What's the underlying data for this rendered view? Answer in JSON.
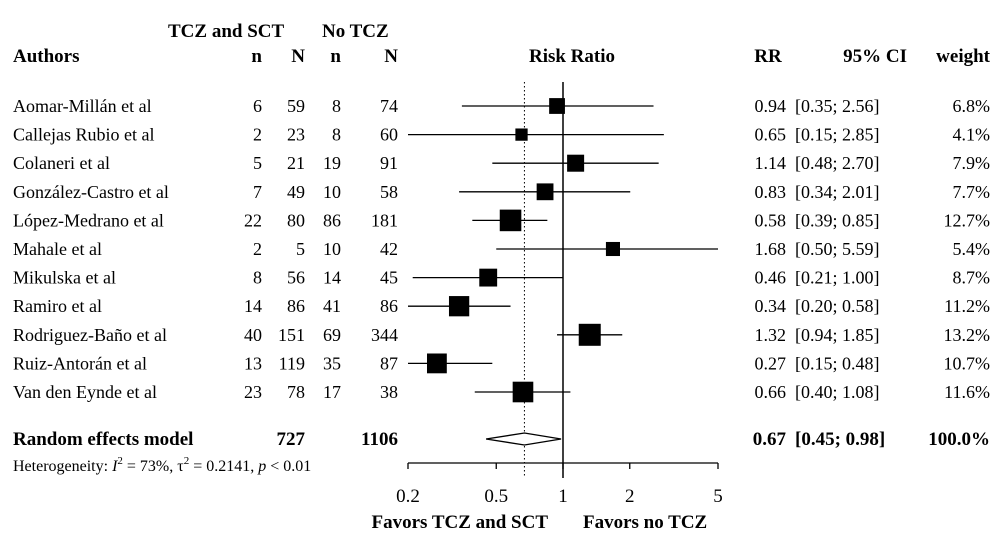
{
  "header": {
    "group1": "TCZ and SCT",
    "group2": "No TCZ",
    "authors": "Authors",
    "n1": "n",
    "N1": "N",
    "n2": "n",
    "N2": "N",
    "risk_ratio": "Risk Ratio",
    "rr": "RR",
    "ci": "95% CI",
    "weight": "weight"
  },
  "chart_data": {
    "type": "forest",
    "title": "Risk Ratio",
    "xscale": "log",
    "xlim": [
      0.2,
      5
    ],
    "xticks": [
      0.2,
      0.5,
      1,
      2,
      5
    ],
    "xtick_labels": [
      "0.2",
      "0.5",
      "1",
      "2",
      "5"
    ],
    "null_line": 1,
    "pooled_line": 0.67,
    "xlabel_left": "Favors TCZ and SCT",
    "xlabel_right": "Favors no TCZ",
    "studies": [
      {
        "author": "Aomar-Millán et al",
        "n1": "6",
        "N1": "59",
        "n2": "8",
        "N2": "74",
        "rr": 0.94,
        "lo": 0.35,
        "hi": 2.56,
        "rr_text": "0.94",
        "ci_text": "[0.35; 2.56]",
        "weight": 6.8,
        "weight_text": "6.8%"
      },
      {
        "author": "Callejas Rubio et al",
        "n1": "2",
        "N1": "23",
        "n2": "8",
        "N2": "60",
        "rr": 0.65,
        "lo": 0.15,
        "hi": 2.85,
        "rr_text": "0.65",
        "ci_text": "[0.15; 2.85]",
        "weight": 4.1,
        "weight_text": "4.1%"
      },
      {
        "author": "Colaneri et al",
        "n1": "5",
        "N1": "21",
        "n2": "19",
        "N2": "91",
        "rr": 1.14,
        "lo": 0.48,
        "hi": 2.7,
        "rr_text": "1.14",
        "ci_text": "[0.48; 2.70]",
        "weight": 7.9,
        "weight_text": "7.9%"
      },
      {
        "author": "González-Castro et al",
        "n1": "7",
        "N1": "49",
        "n2": "10",
        "N2": "58",
        "rr": 0.83,
        "lo": 0.34,
        "hi": 2.01,
        "rr_text": "0.83",
        "ci_text": "[0.34; 2.01]",
        "weight": 7.7,
        "weight_text": "7.7%"
      },
      {
        "author": "López-Medrano et al",
        "n1": "22",
        "N1": "80",
        "n2": "86",
        "N2": "181",
        "rr": 0.58,
        "lo": 0.39,
        "hi": 0.85,
        "rr_text": "0.58",
        "ci_text": "[0.39; 0.85]",
        "weight": 12.7,
        "weight_text": "12.7%"
      },
      {
        "author": "Mahale et al",
        "n1": "2",
        "N1": "5",
        "n2": "10",
        "N2": "42",
        "rr": 1.68,
        "lo": 0.5,
        "hi": 5.59,
        "rr_text": "1.68",
        "ci_text": "[0.50; 5.59]",
        "weight": 5.4,
        "weight_text": "5.4%"
      },
      {
        "author": "Mikulska et al",
        "n1": "8",
        "N1": "56",
        "n2": "14",
        "N2": "45",
        "rr": 0.46,
        "lo": 0.21,
        "hi": 1.0,
        "rr_text": "0.46",
        "ci_text": "[0.21; 1.00]",
        "weight": 8.7,
        "weight_text": "8.7%"
      },
      {
        "author": "Ramiro et al",
        "n1": "14",
        "N1": "86",
        "n2": "41",
        "N2": "86",
        "rr": 0.34,
        "lo": 0.2,
        "hi": 0.58,
        "rr_text": "0.34",
        "ci_text": "[0.20; 0.58]",
        "weight": 11.2,
        "weight_text": "11.2%"
      },
      {
        "author": "Rodriguez-Baño et al",
        "n1": "40",
        "N1": "151",
        "n2": "69",
        "N2": "344",
        "rr": 1.32,
        "lo": 0.94,
        "hi": 1.85,
        "rr_text": "1.32",
        "ci_text": "[0.94; 1.85]",
        "weight": 13.2,
        "weight_text": "13.2%"
      },
      {
        "author": "Ruiz-Antorán et al",
        "n1": "13",
        "N1": "119",
        "n2": "35",
        "N2": "87",
        "rr": 0.27,
        "lo": 0.15,
        "hi": 0.48,
        "rr_text": "0.27",
        "ci_text": "[0.15; 0.48]",
        "weight": 10.7,
        "weight_text": "10.7%"
      },
      {
        "author": "Van den Eynde et al",
        "n1": "23",
        "N1": "78",
        "n2": "17",
        "N2": "38",
        "rr": 0.66,
        "lo": 0.4,
        "hi": 1.08,
        "rr_text": "0.66",
        "ci_text": "[0.40; 1.08]",
        "weight": 11.6,
        "weight_text": "11.6%"
      }
    ],
    "pooled": {
      "label": "Random effects model",
      "N1": "727",
      "N2": "1106",
      "rr": 0.67,
      "lo": 0.45,
      "hi": 0.98,
      "rr_text": "0.67",
      "ci_text": "[0.45; 0.98]",
      "weight_text": "100.0%"
    },
    "heterogeneity": {
      "prefix": "Heterogeneity: ",
      "I2_symbol": "I",
      "I2_sup": "2",
      "I2_value": " = 73%, ",
      "tau_symbol": "τ",
      "tau_sup": "2",
      "tau_value": " = 0.2141, ",
      "p_symbol": "p",
      "p_value": " < 0.01"
    }
  }
}
